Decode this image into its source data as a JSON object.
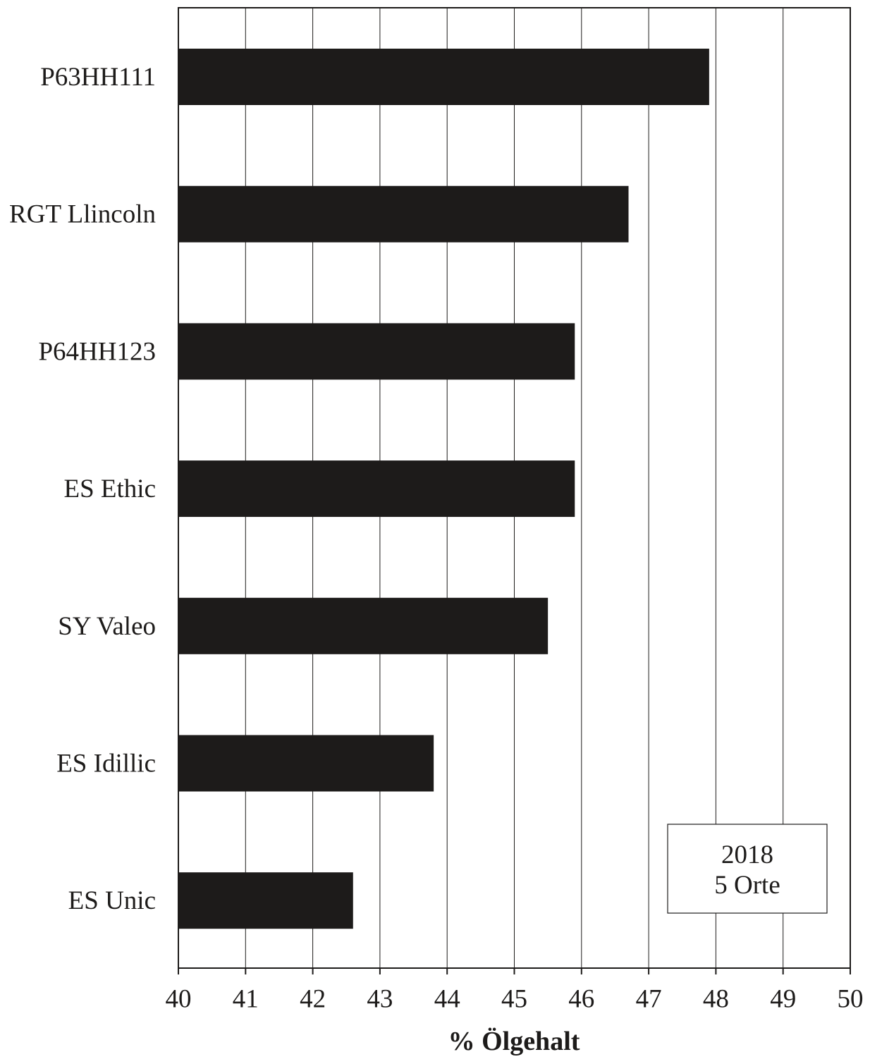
{
  "chart_data": {
    "type": "bar",
    "orientation": "horizontal",
    "categories": [
      "P63HH111",
      "RGT Llincoln",
      "P64HH123",
      "ES Ethic",
      "SY Valeo",
      "ES Idillic",
      "ES Unic"
    ],
    "values": [
      47.9,
      46.7,
      45.9,
      45.9,
      45.5,
      43.8,
      42.6
    ],
    "xlabel": "% Ölgehalt",
    "xlim": [
      40,
      50
    ],
    "xticks": [
      "40",
      "41",
      "42",
      "43",
      "44",
      "45",
      "46",
      "47",
      "48",
      "49",
      "50"
    ],
    "grid": "vertical",
    "bar_color": "#1d1b1a",
    "annotation": {
      "lines": [
        "2018",
        "5 Orte"
      ],
      "position": "bottom-right"
    }
  }
}
